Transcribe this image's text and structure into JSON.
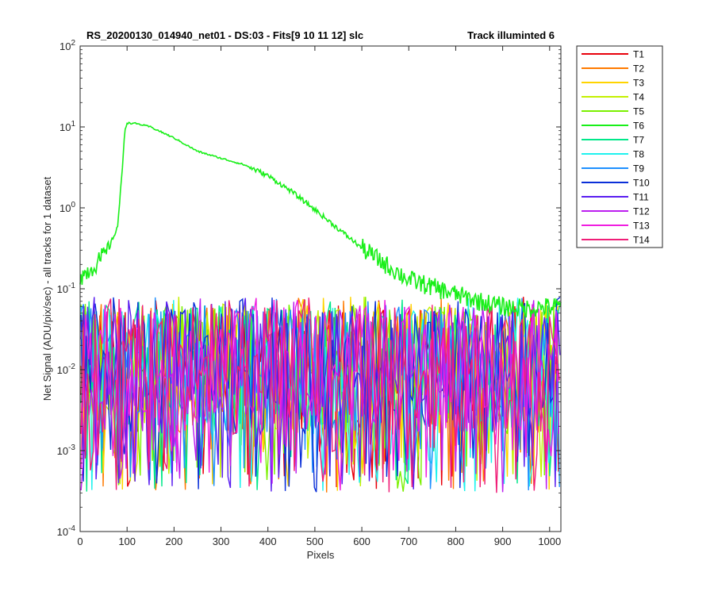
{
  "chart_data": {
    "type": "line",
    "title": "RS_20200130_014940_net01 - DS:03 - Fits[9  10  11  12]   slc",
    "subtitle": "Track illuminted 6",
    "xlabel": "Pixels",
    "ylabel": "Net Signal (ADU/pix/sec) - all tracks for 1 dataset",
    "xlim": [
      0,
      1024
    ],
    "ylim": [
      0.0001,
      100
    ],
    "yscale": "log",
    "x_ticks": [
      "0",
      "100",
      "200",
      "300",
      "400",
      "500",
      "600",
      "700",
      "800",
      "900",
      "1000"
    ],
    "y_ticks": [
      {
        "base": "10",
        "exp": "-4"
      },
      {
        "base": "10",
        "exp": "-3"
      },
      {
        "base": "10",
        "exp": "-2"
      },
      {
        "base": "10",
        "exp": "-1"
      },
      {
        "base": "10",
        "exp": "0"
      },
      {
        "base": "10",
        "exp": "1"
      },
      {
        "base": "10",
        "exp": "2"
      }
    ],
    "grid": false,
    "legend_position": "outside-right",
    "series": [
      {
        "name": "T1",
        "color": "#e8000b",
        "kind": "noise"
      },
      {
        "name": "T2",
        "color": "#ff7a00",
        "kind": "noise"
      },
      {
        "name": "T3",
        "color": "#ffd400",
        "kind": "noise"
      },
      {
        "name": "T4",
        "color": "#c4f000",
        "kind": "noise"
      },
      {
        "name": "T5",
        "color": "#7bf000",
        "kind": "noise"
      },
      {
        "name": "T6",
        "color": "#19ef19",
        "kind": "signal",
        "points": [
          [
            0,
            0.14
          ],
          [
            20,
            0.17
          ],
          [
            40,
            0.22
          ],
          [
            60,
            0.3
          ],
          [
            80,
            0.6
          ],
          [
            90,
            3.0
          ],
          [
            95,
            9.0
          ],
          [
            100,
            11.2
          ],
          [
            120,
            11.0
          ],
          [
            150,
            10.0
          ],
          [
            200,
            7.3
          ],
          [
            250,
            5.0
          ],
          [
            300,
            4.1
          ],
          [
            350,
            3.4
          ],
          [
            400,
            2.5
          ],
          [
            450,
            1.6
          ],
          [
            500,
            0.95
          ],
          [
            550,
            0.55
          ],
          [
            600,
            0.32
          ],
          [
            650,
            0.2
          ],
          [
            700,
            0.13
          ],
          [
            750,
            0.105
          ],
          [
            800,
            0.085
          ],
          [
            850,
            0.07
          ],
          [
            900,
            0.06
          ],
          [
            950,
            0.057
          ],
          [
            1000,
            0.06
          ],
          [
            1024,
            0.06
          ]
        ]
      },
      {
        "name": "T7",
        "color": "#00e88a",
        "kind": "noise"
      },
      {
        "name": "T8",
        "color": "#1ef2ee",
        "kind": "noise"
      },
      {
        "name": "T9",
        "color": "#1e90ff",
        "kind": "noise"
      },
      {
        "name": "T10",
        "color": "#0a2fd8",
        "kind": "noise"
      },
      {
        "name": "T11",
        "color": "#5a1ef0",
        "kind": "noise"
      },
      {
        "name": "T12",
        "color": "#bc1ef0",
        "kind": "noise"
      },
      {
        "name": "T13",
        "color": "#f01ee0",
        "kind": "noise"
      },
      {
        "name": "T14",
        "color": "#f01e78",
        "kind": "noise"
      }
    ],
    "noise_band": {
      "low": 0.0003,
      "high": 0.08
    }
  }
}
